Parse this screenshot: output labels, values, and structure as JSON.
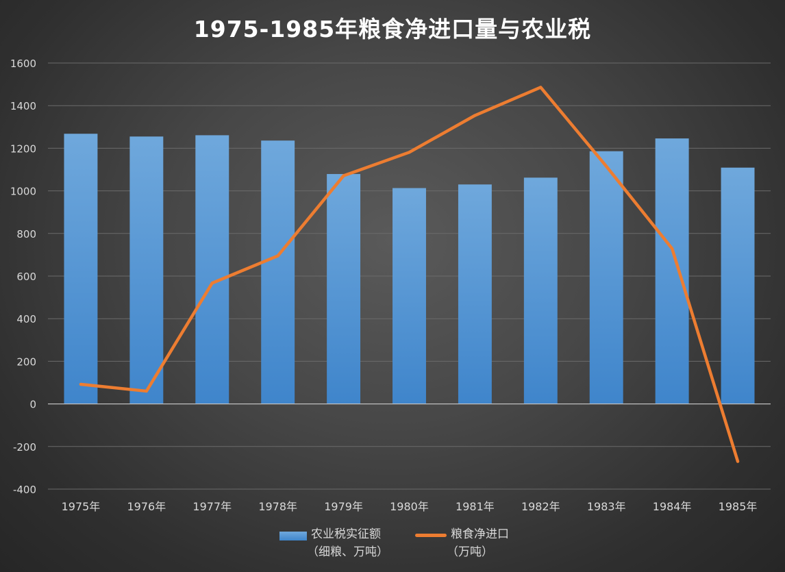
{
  "chart_data": {
    "type": "bar+line",
    "title": "1975-1985年粮食净进口量与农业税",
    "categories": [
      "1975年",
      "1976年",
      "1977年",
      "1978年",
      "1979年",
      "1980年",
      "1981年",
      "1982年",
      "1983年",
      "1984年",
      "1985年"
    ],
    "series": [
      {
        "name_line1": "农业税实征额",
        "name_line2": "（细粮、万吨）",
        "type": "bar",
        "color": "#5b9bd5",
        "values": [
          1268,
          1255,
          1261,
          1236,
          1079,
          1013,
          1030,
          1062,
          1186,
          1246,
          1109
        ]
      },
      {
        "name_line1": "粮食净进口",
        "name_line2": "（万吨）",
        "type": "line",
        "color": "#ed7d31",
        "values": [
          92,
          60,
          567,
          695,
          1071,
          1181,
          1354,
          1486,
          1115,
          729,
          -270
        ]
      }
    ],
    "ylim": [
      -400,
      1600
    ],
    "yticks": [
      -400,
      -200,
      0,
      200,
      400,
      600,
      800,
      1000,
      1200,
      1400,
      1600
    ],
    "grid": true,
    "legend_position": "bottom"
  }
}
